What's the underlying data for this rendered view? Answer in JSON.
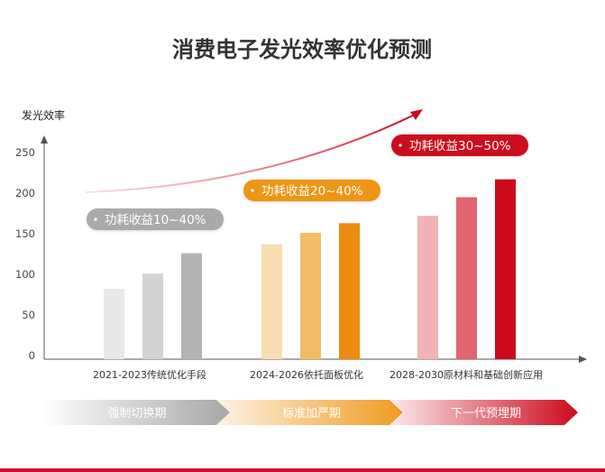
{
  "chart_data": {
    "type": "bar",
    "title": "消费电子发光效率优化预测",
    "ylabel": "发光效率",
    "ylim": [
      0,
      250
    ],
    "yticks": [
      0,
      50,
      100,
      150,
      200,
      250
    ],
    "grid": false,
    "categories": [
      "2021-2023传统优化手段",
      "2024-2026依托面板优化",
      "2028-2030原材料和基础创新应用"
    ],
    "groups": [
      {
        "values": [
          82,
          101,
          126
        ],
        "colors": [
          "#e8e8e8",
          "#d3d3d3",
          "#b3b3b3"
        ]
      },
      {
        "values": [
          137,
          151,
          163
        ],
        "colors": [
          "#f8dcae",
          "#f2bc67",
          "#ed8c0f"
        ]
      },
      {
        "values": [
          172,
          195,
          217
        ],
        "colors": [
          "#f0b3b6",
          "#e06570",
          "#cc0a1c"
        ]
      }
    ],
    "annotations": [
      {
        "text": "功耗收益10~40%",
        "color": "#aaaaaa"
      },
      {
        "text": "功耗收益20~40%",
        "color": "#ee9615"
      },
      {
        "text": "功耗收益30~50%",
        "color": "#cc0a1c"
      }
    ],
    "phases": [
      {
        "text": "强制切换期",
        "color": "#a6a6a6"
      },
      {
        "text": "标准加严期",
        "color": "#ef9a1e"
      },
      {
        "text": "下一代预埋期",
        "color": "#cc0a1c"
      }
    ]
  }
}
